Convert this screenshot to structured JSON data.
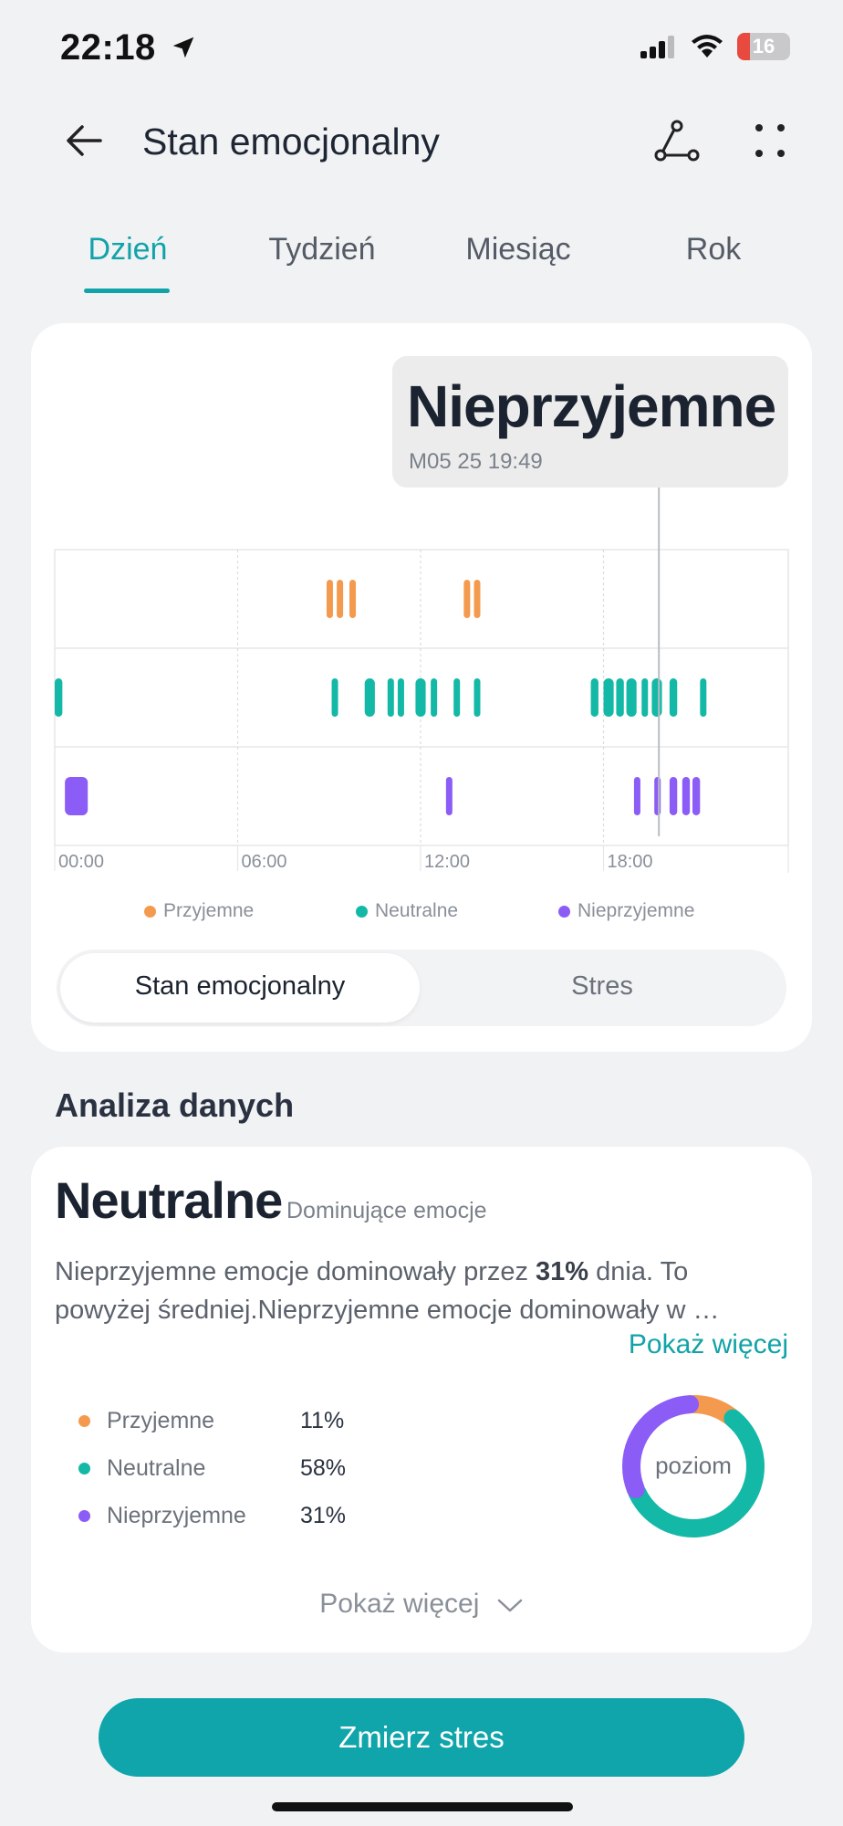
{
  "status_bar": {
    "time": "22:18",
    "battery": "16"
  },
  "header": {
    "title": "Stan emocjonalny"
  },
  "tabs": [
    {
      "label": "Dzień",
      "active": true
    },
    {
      "label": "Tydzień",
      "active": false
    },
    {
      "label": "Miesiąc",
      "active": false
    },
    {
      "label": "Rok",
      "active": false
    }
  ],
  "tooltip": {
    "title": "Nieprzyjemne",
    "time": "M05 25 19:49"
  },
  "chart_data": {
    "type": "timeline",
    "x_ticks": [
      "00:00",
      "06:00",
      "12:00",
      "18:00"
    ],
    "x_range_hours": [
      0,
      24
    ],
    "selected_time": "19:49",
    "series": [
      {
        "name": "Przyjemne",
        "color": "#f49a4f",
        "events": [
          [
            "8:55",
            "9:05"
          ],
          [
            "9:15",
            "9:25"
          ],
          [
            "9:40",
            "9:50"
          ],
          [
            "13:25",
            "13:35"
          ],
          [
            "13:45",
            "13:55"
          ]
        ]
      },
      {
        "name": "Neutralne",
        "color": "#14b8a6",
        "events": [
          [
            "0:00",
            "0:15"
          ],
          [
            "9:05",
            "9:15"
          ],
          [
            "10:10",
            "10:30"
          ],
          [
            "10:55",
            "11:05"
          ],
          [
            "11:15",
            "11:25"
          ],
          [
            "11:50",
            "12:10"
          ],
          [
            "12:20",
            "12:30"
          ],
          [
            "13:05",
            "13:15"
          ],
          [
            "13:45",
            "13:55"
          ],
          [
            "17:35",
            "17:50"
          ],
          [
            "18:00",
            "18:20"
          ],
          [
            "18:25",
            "18:40"
          ],
          [
            "18:45",
            "19:05"
          ],
          [
            "19:15",
            "19:25"
          ],
          [
            "19:35",
            "19:55"
          ],
          [
            "20:10",
            "20:25"
          ],
          [
            "21:10",
            "21:20"
          ]
        ]
      },
      {
        "name": "Nieprzyjemne",
        "color": "#8b5cf6",
        "events": [
          [
            "0:20",
            "1:05"
          ],
          [
            "12:50",
            "13:00"
          ],
          [
            "19:00",
            "19:10"
          ],
          [
            "19:40",
            "19:50"
          ],
          [
            "20:10",
            "20:25"
          ],
          [
            "20:35",
            "20:50"
          ],
          [
            "20:55",
            "21:10"
          ]
        ]
      }
    ]
  },
  "legend": [
    {
      "label": "Przyjemne",
      "color": "#f49a4f"
    },
    {
      "label": "Neutralne",
      "color": "#14b8a6"
    },
    {
      "label": "Nieprzyjemne",
      "color": "#8b5cf6"
    }
  ],
  "toggle": {
    "left": "Stan emocjonalny",
    "right": "Stres",
    "active": "left"
  },
  "analysis": {
    "section_title": "Analiza danych",
    "dominant": "Neutralne",
    "dominant_sub": "Dominujące emocje",
    "desc_pre": "Nieprzyjemne emocje dominowały przez ",
    "desc_bold": "31%",
    "desc_post": " dnia. To powyżej średniej.Nieprzyjemne emocje dominowały w …",
    "show_more": "Pokaż więcej",
    "stats": [
      {
        "label": "Przyjemne",
        "value": "11%",
        "color": "#f49a4f",
        "fraction": 0.11
      },
      {
        "label": "Neutralne",
        "value": "58%",
        "color": "#14b8a6",
        "fraction": 0.58
      },
      {
        "label": "Nieprzyjemne",
        "value": "31%",
        "color": "#8b5cf6",
        "fraction": 0.31
      }
    ],
    "donut_label": "poziom",
    "show_more_bottom": "Pokaż więcej"
  },
  "button": {
    "label": "Zmierz stres"
  },
  "colors": {
    "accent": "#0fa5aa"
  }
}
